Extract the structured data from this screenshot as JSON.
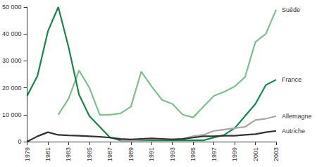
{
  "chart_data": {
    "type": "line",
    "x": [
      1979,
      1980,
      1981,
      1982,
      1983,
      1984,
      1985,
      1986,
      1987,
      1988,
      1989,
      1990,
      1991,
      1992,
      1993,
      1994,
      1995,
      1996,
      1997,
      1998,
      1999,
      2000,
      2001,
      2002,
      2003
    ],
    "series": [
      {
        "name": "Suède",
        "color": "#80bf8e",
        "values": [
          null,
          null,
          null,
          10000,
          16000,
          26500,
          20000,
          10000,
          10000,
          10500,
          13000,
          26000,
          20500,
          15500,
          14000,
          10000,
          9000,
          13000,
          17000,
          18500,
          20500,
          24000,
          37000,
          40000,
          49000
        ]
      },
      {
        "name": "France",
        "color": "#16894a",
        "values": [
          17000,
          24500,
          41000,
          50000,
          35000,
          17500,
          9500,
          5500,
          1500,
          500,
          500,
          500,
          500,
          500,
          500,
          500,
          500,
          500,
          1500,
          2500,
          5000,
          9500,
          14000,
          21000,
          23000
        ]
      },
      {
        "name": "Allemagne",
        "color": "#a6a6a6",
        "values": [
          null,
          null,
          null,
          null,
          null,
          null,
          null,
          null,
          null,
          500,
          500,
          700,
          800,
          800,
          800,
          1000,
          2000,
          2500,
          4000,
          4500,
          5000,
          5500,
          8000,
          8500,
          9500
        ]
      },
      {
        "name": "Autriche",
        "color": "#333333",
        "values": [
          0,
          2000,
          3500,
          2500,
          2300,
          2200,
          2000,
          1800,
          1500,
          1000,
          800,
          1000,
          1200,
          1000,
          800,
          1000,
          1500,
          2000,
          2000,
          2200,
          2200,
          2500,
          2800,
          3500,
          4000
        ]
      }
    ],
    "xlim": [
      1979,
      2003
    ],
    "xticks": [
      1979,
      1981,
      1983,
      1985,
      1987,
      1989,
      1991,
      1993,
      1995,
      1997,
      1999,
      2001,
      2003
    ],
    "ylim": [
      0,
      50000
    ],
    "yticks": [
      0,
      {
        "value": 10000,
        "label": "10 000"
      },
      {
        "value": 20000,
        "label": "20 000"
      },
      {
        "value": 30000,
        "label": "30 000"
      },
      {
        "value": 40000,
        "label": "40 000"
      },
      {
        "value": 50000,
        "label": "50 000"
      }
    ],
    "grid": false
  }
}
